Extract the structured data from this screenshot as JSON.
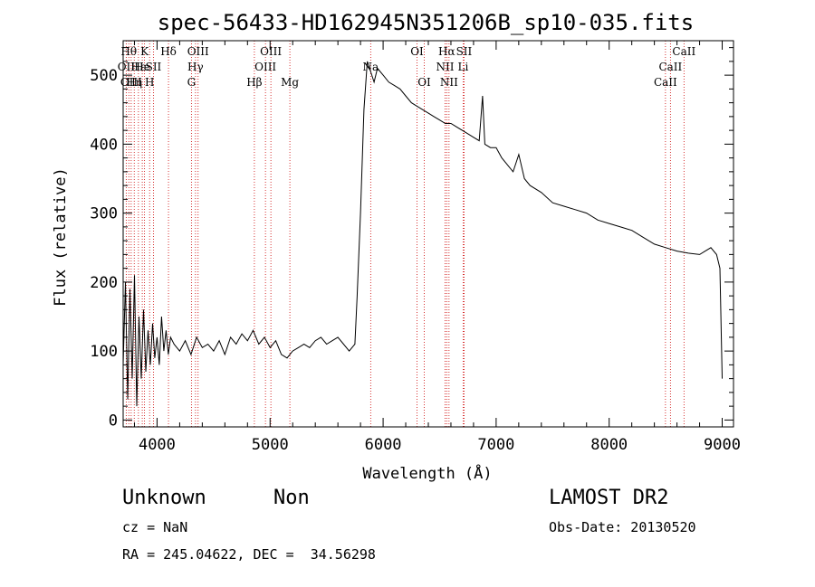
{
  "chart_data": {
    "type": "line",
    "title": "spec-56433-HD162945N351206B_sp10-035.fits",
    "xlabel": "Wavelength (Å)",
    "ylabel": "Flux (relative)",
    "xlim": [
      3700,
      9100
    ],
    "ylim": [
      -10,
      550
    ],
    "x_ticks": [
      4000,
      5000,
      6000,
      7000,
      8000,
      9000
    ],
    "y_ticks": [
      0,
      100,
      200,
      300,
      400,
      500
    ],
    "grid": false,
    "line_color": "#000000",
    "marker_color": "#cc0000",
    "series": [
      {
        "x": [
          3700,
          3720,
          3740,
          3760,
          3780,
          3800,
          3820,
          3840,
          3860,
          3880,
          3900,
          3920,
          3940,
          3960,
          3980,
          4000,
          4020,
          4040,
          4060,
          4080,
          4100,
          4120,
          4150,
          4200,
          4250,
          4300,
          4350,
          4400,
          4450,
          4500,
          4550,
          4600,
          4650,
          4700,
          4750,
          4800,
          4850,
          4900,
          4950,
          5000,
          5050,
          5100,
          5150,
          5200,
          5250,
          5300,
          5350,
          5400,
          5450,
          5500,
          5550,
          5600,
          5650,
          5700,
          5750,
          5770,
          5800,
          5830,
          5860,
          5880,
          5900,
          5920,
          5950,
          6000,
          6050,
          6100,
          6150,
          6200,
          6250,
          6300,
          6350,
          6400,
          6450,
          6500,
          6550,
          6600,
          6650,
          6700,
          6750,
          6800,
          6850,
          6880,
          6900,
          6950,
          7000,
          7050,
          7100,
          7150,
          7200,
          7250,
          7300,
          7400,
          7500,
          7600,
          7700,
          7800,
          7900,
          8000,
          8100,
          8200,
          8300,
          8400,
          8500,
          8600,
          8700,
          8800,
          8850,
          8900,
          8950,
          8980,
          9000
        ],
        "y": [
          80,
          200,
          30,
          190,
          60,
          210,
          20,
          150,
          60,
          160,
          70,
          130,
          80,
          140,
          90,
          120,
          80,
          150,
          100,
          130,
          95,
          120,
          110,
          100,
          115,
          95,
          120,
          105,
          110,
          100,
          115,
          95,
          120,
          110,
          125,
          115,
          130,
          110,
          120,
          105,
          115,
          95,
          90,
          100,
          105,
          110,
          105,
          115,
          120,
          110,
          115,
          120,
          110,
          100,
          110,
          180,
          300,
          450,
          520,
          510,
          500,
          490,
          510,
          500,
          490,
          485,
          480,
          470,
          460,
          455,
          450,
          445,
          440,
          435,
          430,
          430,
          425,
          420,
          415,
          410,
          405,
          470,
          400,
          395,
          395,
          380,
          370,
          360,
          385,
          350,
          340,
          330,
          315,
          310,
          305,
          300,
          290,
          285,
          280,
          275,
          265,
          255,
          250,
          245,
          242,
          240,
          245,
          250,
          240,
          220,
          60
        ]
      }
    ],
    "line_markers": [
      {
        "wavelength": 3727,
        "label": "OII",
        "row": 2
      },
      {
        "wavelength": 3750,
        "label": "Hθ",
        "row": 1
      },
      {
        "wavelength": 3771,
        "label": "OIII",
        "row": 3
      },
      {
        "wavelength": 3798,
        "label": "Hη",
        "row": 3
      },
      {
        "wavelength": 3835,
        "label": "Hε",
        "row": 2
      },
      {
        "wavelength": 3869,
        "label": "He",
        "row": 2
      },
      {
        "wavelength": 3889,
        "label": "K",
        "row": 1
      },
      {
        "wavelength": 3934,
        "label": "H",
        "row": 3
      },
      {
        "wavelength": 3968,
        "label": "SII",
        "row": 2
      },
      {
        "wavelength": 4101,
        "label": "Hδ",
        "row": 1
      },
      {
        "wavelength": 4304,
        "label": "G",
        "row": 3
      },
      {
        "wavelength": 4340,
        "label": "Hγ",
        "row": 2
      },
      {
        "wavelength": 4363,
        "label": "OIII",
        "row": 1
      },
      {
        "wavelength": 4861,
        "label": "Hβ",
        "row": 3
      },
      {
        "wavelength": 4959,
        "label": "OIII",
        "row": 2
      },
      {
        "wavelength": 5007,
        "label": "OIII",
        "row": 1
      },
      {
        "wavelength": 5175,
        "label": "Mg",
        "row": 3
      },
      {
        "wavelength": 5890,
        "label": "Na",
        "row": 2
      },
      {
        "wavelength": 6300,
        "label": "OI",
        "row": 1
      },
      {
        "wavelength": 6364,
        "label": "OI",
        "row": 3
      },
      {
        "wavelength": 6548,
        "label": "NII",
        "row": 2
      },
      {
        "wavelength": 6563,
        "label": "Hα",
        "row": 1
      },
      {
        "wavelength": 6583,
        "label": "NII",
        "row": 3
      },
      {
        "wavelength": 6708,
        "label": "Li",
        "row": 2
      },
      {
        "wavelength": 6716,
        "label": "SII",
        "row": 1
      },
      {
        "wavelength": 8498,
        "label": "CaII",
        "row": 3
      },
      {
        "wavelength": 8542,
        "label": "CaII",
        "row": 2
      },
      {
        "wavelength": 8662,
        "label": "CaII",
        "row": 1
      }
    ]
  },
  "footer": {
    "class": "Unknown",
    "subclass": "Non",
    "survey": "LAMOST DR2",
    "cz": "cz = NaN",
    "obs_date": "Obs-Date: 20130520",
    "coords": "RA = 245.04622, DEC =  34.56298"
  }
}
